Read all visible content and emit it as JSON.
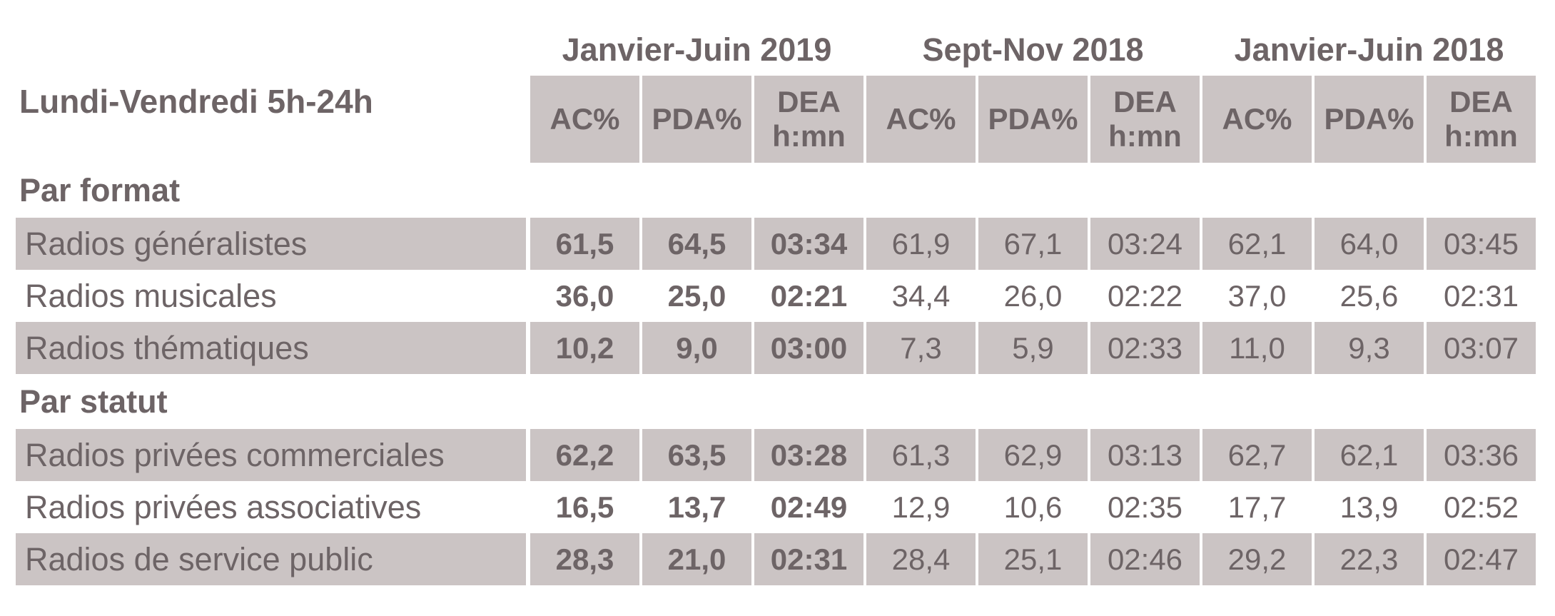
{
  "chart_data": {
    "type": "table",
    "title": "Lundi-Vendredi 5h-24h",
    "column_groups": [
      "Janvier-Juin 2019",
      "Sept-Nov 2018",
      "Janvier-Juin 2018"
    ],
    "columns": [
      "AC%",
      "PDA%",
      "DEA\nh:mn",
      "AC%",
      "PDA%",
      "DEA\nh:mn",
      "AC%",
      "PDA%",
      "DEA\nh:mn"
    ],
    "sections": [
      {
        "label": "Par format",
        "rows": [
          {
            "label": "Radios généralistes",
            "values": [
              "61,5",
              "64,5",
              "03:34",
              "61,9",
              "67,1",
              "03:24",
              "62,1",
              "64,0",
              "03:45"
            ]
          },
          {
            "label": "Radios musicales",
            "values": [
              "36,0",
              "25,0",
              "02:21",
              "34,4",
              "26,0",
              "02:22",
              "37,0",
              "25,6",
              "02:31"
            ]
          },
          {
            "label": "Radios thématiques",
            "values": [
              "10,2",
              "9,0",
              "03:00",
              "7,3",
              "5,9",
              "02:33",
              "11,0",
              "9,3",
              "03:07"
            ]
          }
        ]
      },
      {
        "label": "Par statut",
        "rows": [
          {
            "label": "Radios privées commerciales",
            "values": [
              "62,2",
              "63,5",
              "03:28",
              "61,3",
              "62,9",
              "03:13",
              "62,7",
              "62,1",
              "03:36"
            ]
          },
          {
            "label": "Radios privées associatives",
            "values": [
              "16,5",
              "13,7",
              "02:49",
              "12,9",
              "10,6",
              "02:35",
              "17,7",
              "13,9",
              "02:52"
            ]
          },
          {
            "label": "Radios de service public",
            "values": [
              "28,3",
              "21,0",
              "02:31",
              "28,4",
              "25,1",
              "02:46",
              "29,2",
              "22,3",
              "02:47"
            ]
          }
        ]
      }
    ],
    "legend": "none",
    "grid": "off",
    "colors": {
      "shaded_cell_bg": "#cbc4c4",
      "text": "#6d6466",
      "page_bg": "#ffffff"
    },
    "bold_group": "Janvier-Juin 2019"
  }
}
